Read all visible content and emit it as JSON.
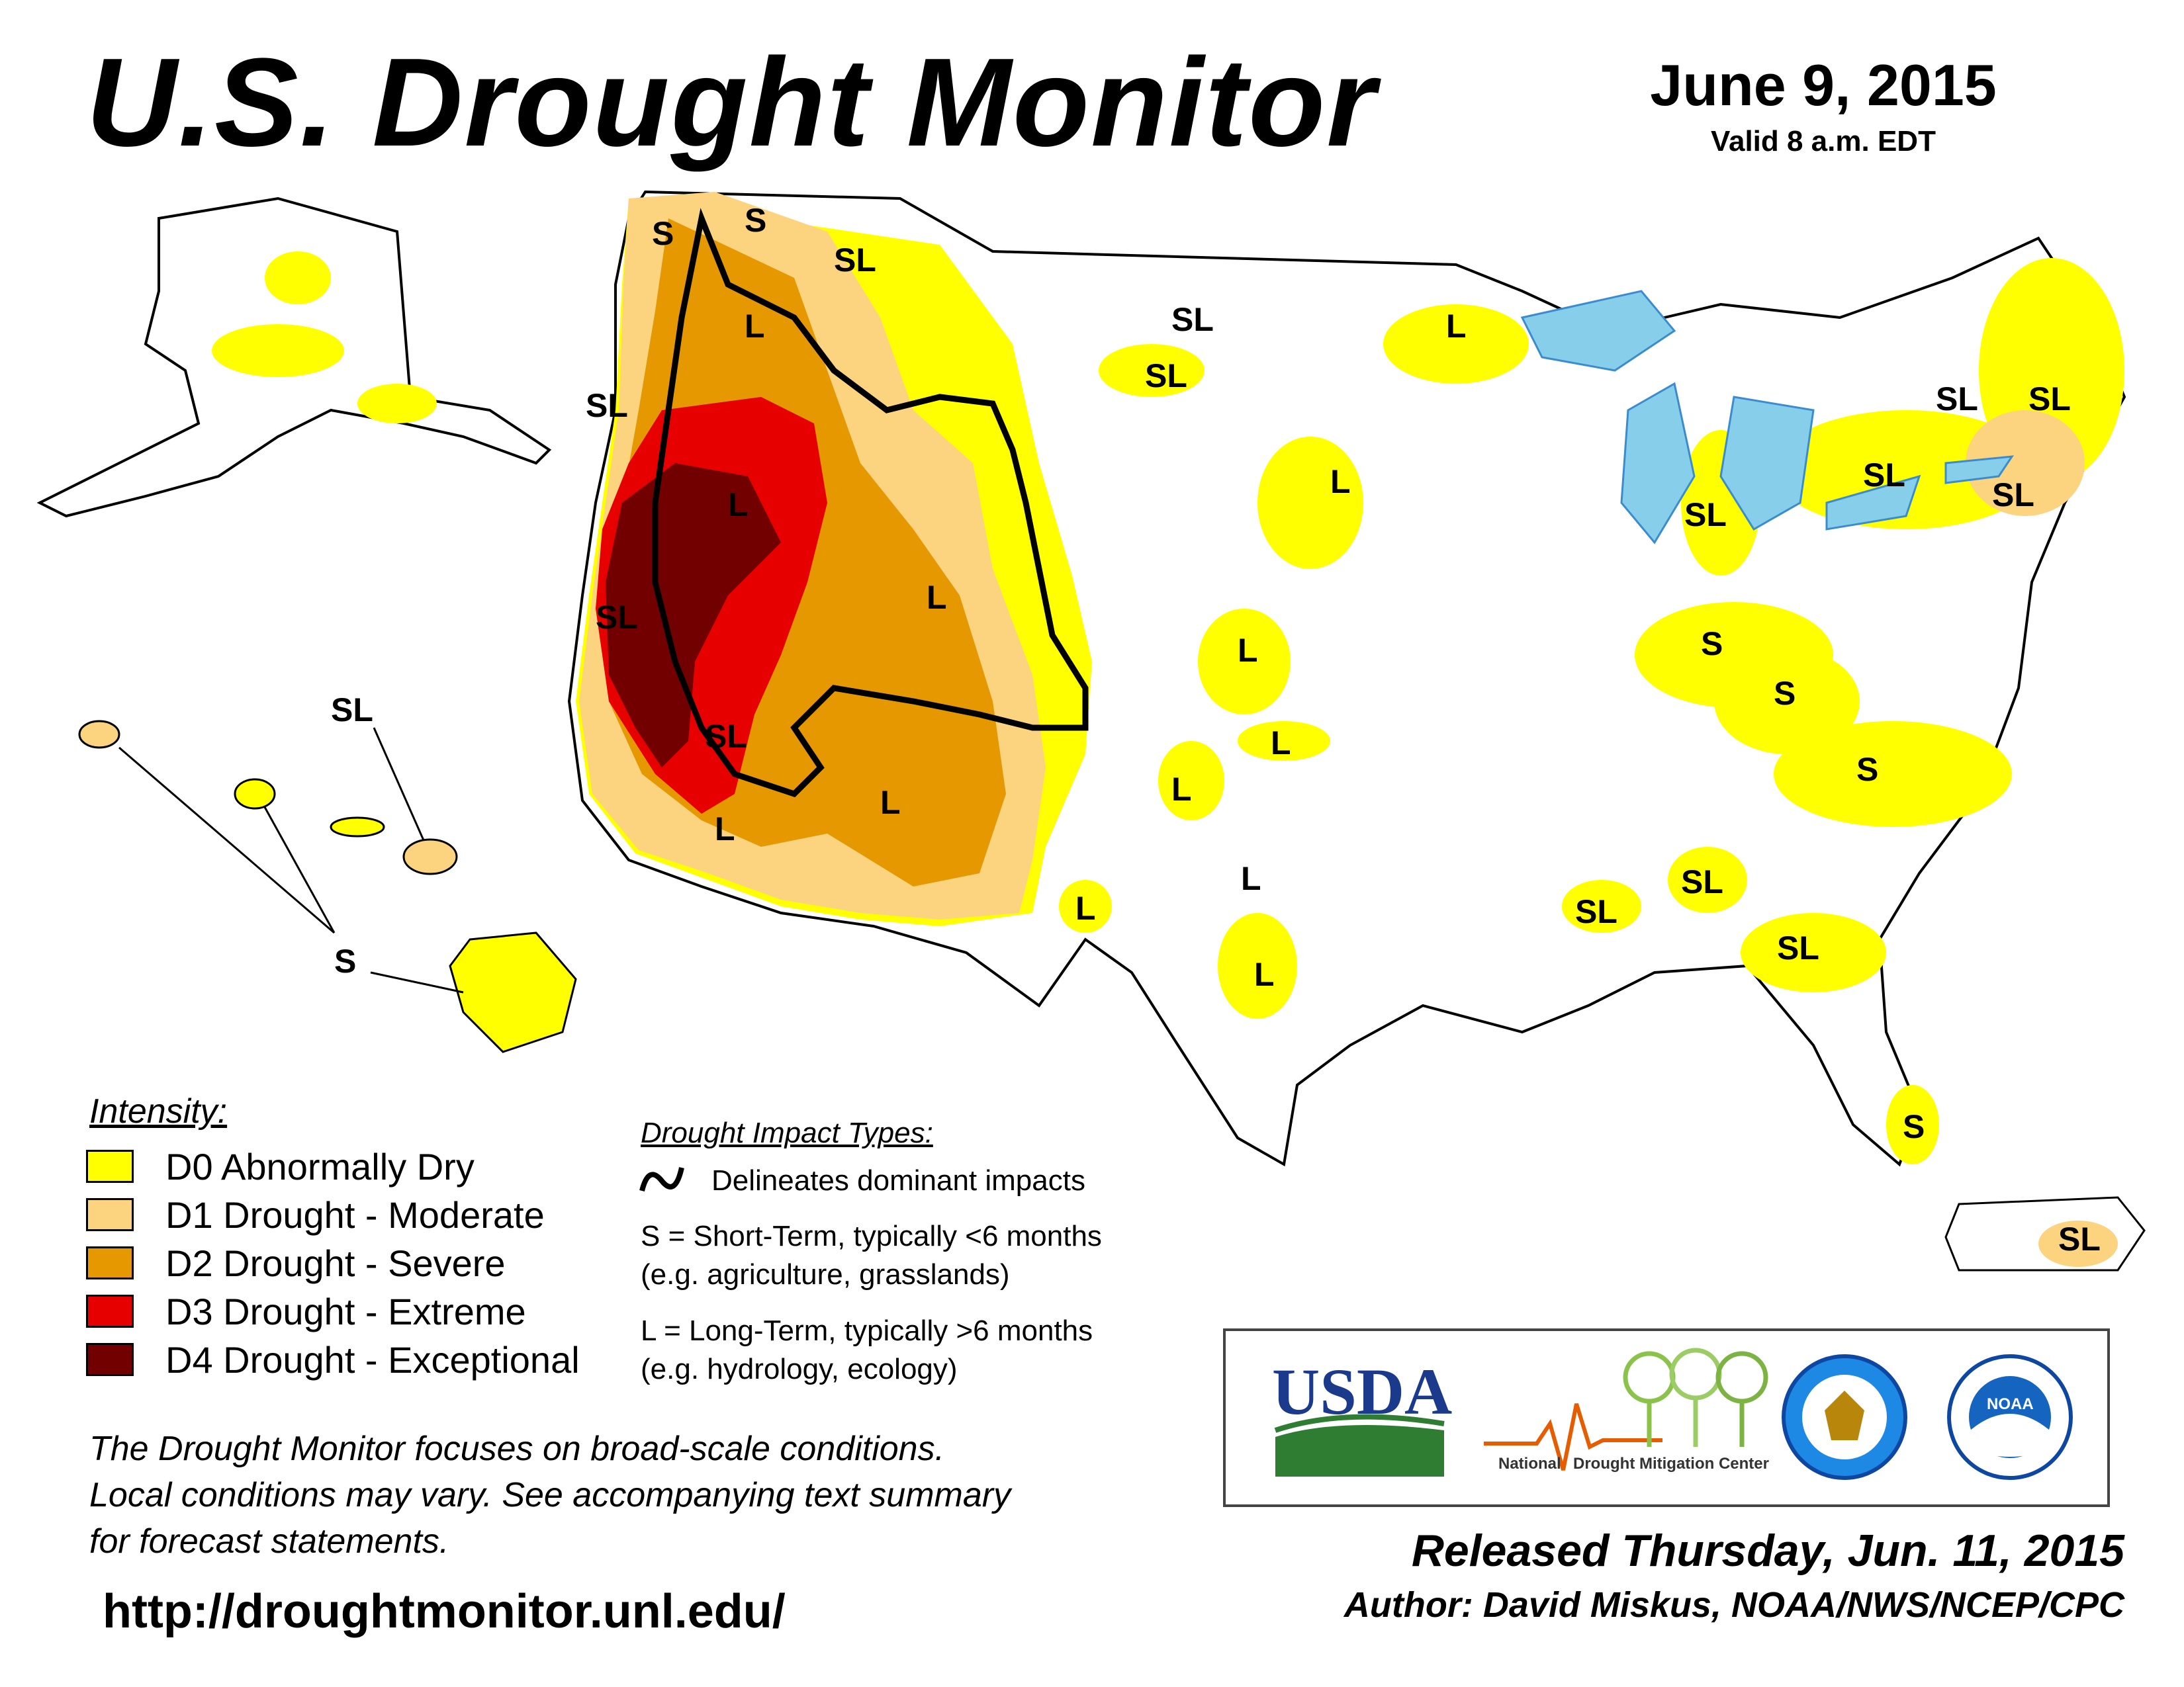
{
  "header": {
    "title": "U.S. Drought Monitor",
    "date": "June 9, 2015",
    "valid": "Valid 8 a.m. EDT"
  },
  "legend": {
    "heading": "Intensity:",
    "items": [
      {
        "label": "D0 Abnormally Dry",
        "color": "#FFFF00"
      },
      {
        "label": "D1 Drought - Moderate",
        "color": "#FCD37F"
      },
      {
        "label": "D2 Drought - Severe",
        "color": "#E69800"
      },
      {
        "label": "D3 Drought - Extreme",
        "color": "#E60000"
      },
      {
        "label": "D4 Drought - Exceptional",
        "color": "#730000"
      }
    ]
  },
  "impact_types": {
    "heading": "Drought Impact Types:",
    "line_label": "Delineates dominant impacts",
    "short_term": "S = Short-Term, typically <6 months",
    "short_term_eg": "(e.g. agriculture, grasslands)",
    "long_term": "L = Long-Term, typically >6 months",
    "long_term_eg": "(e.g. hydrology, ecology)"
  },
  "disclaimer": {
    "line1": "The Drought Monitor focuses on broad-scale conditions.",
    "line2": "Local conditions may vary. See accompanying text summary",
    "line3": "for forecast statements."
  },
  "url": "http://droughtmonitor.unl.edu/",
  "logos": {
    "usda": "USDA",
    "ndmc_a": "National",
    "ndmc_b": "Drought Mitigation Center",
    "noaa": "NOAA"
  },
  "footer": {
    "released": "Released Thursday, Jun. 11, 2015",
    "author": "Author: David Miskus, NOAA/NWS/NCEP/CPC"
  },
  "map": {
    "impact_labels": {
      "wa_s1": "S",
      "wa_s2": "S",
      "wa_sl": "SL",
      "or_sl": "SL",
      "or_l": "L",
      "ca_sl1": "SL",
      "ca_sl2": "SL",
      "nv_l": "L",
      "ca_l": "L",
      "ut_l": "L",
      "az_l": "L",
      "nm_l": "L",
      "nd_sl": "SL",
      "sd_sl": "SL",
      "mn_l": "L",
      "ia_l": "L",
      "ks_l1": "L",
      "ks_l2": "L",
      "ok_l": "L",
      "tx_l1": "L",
      "tx_l2": "L",
      "mi_sl": "SL",
      "oh_s": "S",
      "wv_s": "S",
      "nc_s": "S",
      "ms_sl": "SL",
      "al_sl": "SL",
      "ga_sl": "SL",
      "fl_s": "S",
      "ny_sl1": "SL",
      "ny_sl2": "SL",
      "ne_sl": "SL",
      "me_sl": "SL",
      "pr_sl": "SL",
      "hi_sl": "SL",
      "hi_s": "S"
    }
  }
}
